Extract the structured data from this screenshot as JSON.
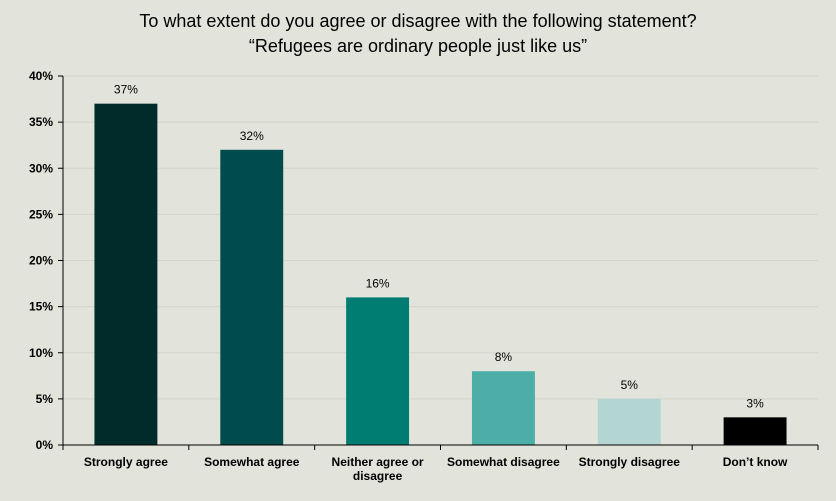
{
  "chart_data": {
    "type": "bar",
    "title_lines": [
      "To what extent do you agree or disagree with the following statement?",
      "“Refugees are ordinary people just like us”"
    ],
    "categories": [
      [
        "Strongly agree"
      ],
      [
        "Somewhat agree"
      ],
      [
        "Neither agree or",
        "disagree"
      ],
      [
        "Somewhat disagree"
      ],
      [
        "Strongly disagree"
      ],
      [
        "Don’t know"
      ]
    ],
    "values": [
      37,
      32,
      16,
      8,
      5,
      3
    ],
    "data_labels": [
      "37%",
      "32%",
      "16%",
      "8%",
      "5%",
      "3%"
    ],
    "bar_colors": [
      "#002b2b",
      "#004c4d",
      "#007d72",
      "#4caea6",
      "#b3d6d2",
      "#000000"
    ],
    "ylim": [
      0,
      40
    ],
    "y_ticks": [
      {
        "value": 0,
        "label": "0%"
      },
      {
        "value": 5,
        "label": "5%"
      },
      {
        "value": 10,
        "label": "10%"
      },
      {
        "value": 15,
        "label": "15%"
      },
      {
        "value": 20,
        "label": "20%"
      },
      {
        "value": 25,
        "label": "25%"
      },
      {
        "value": 30,
        "label": "30%"
      },
      {
        "value": 35,
        "label": "35%"
      },
      {
        "value": 40,
        "label": "40%"
      }
    ],
    "grid": true,
    "legend": "none"
  },
  "colors": {
    "background": "#e2e3da",
    "grid": "#d3d4cb",
    "axis": "#000000"
  }
}
